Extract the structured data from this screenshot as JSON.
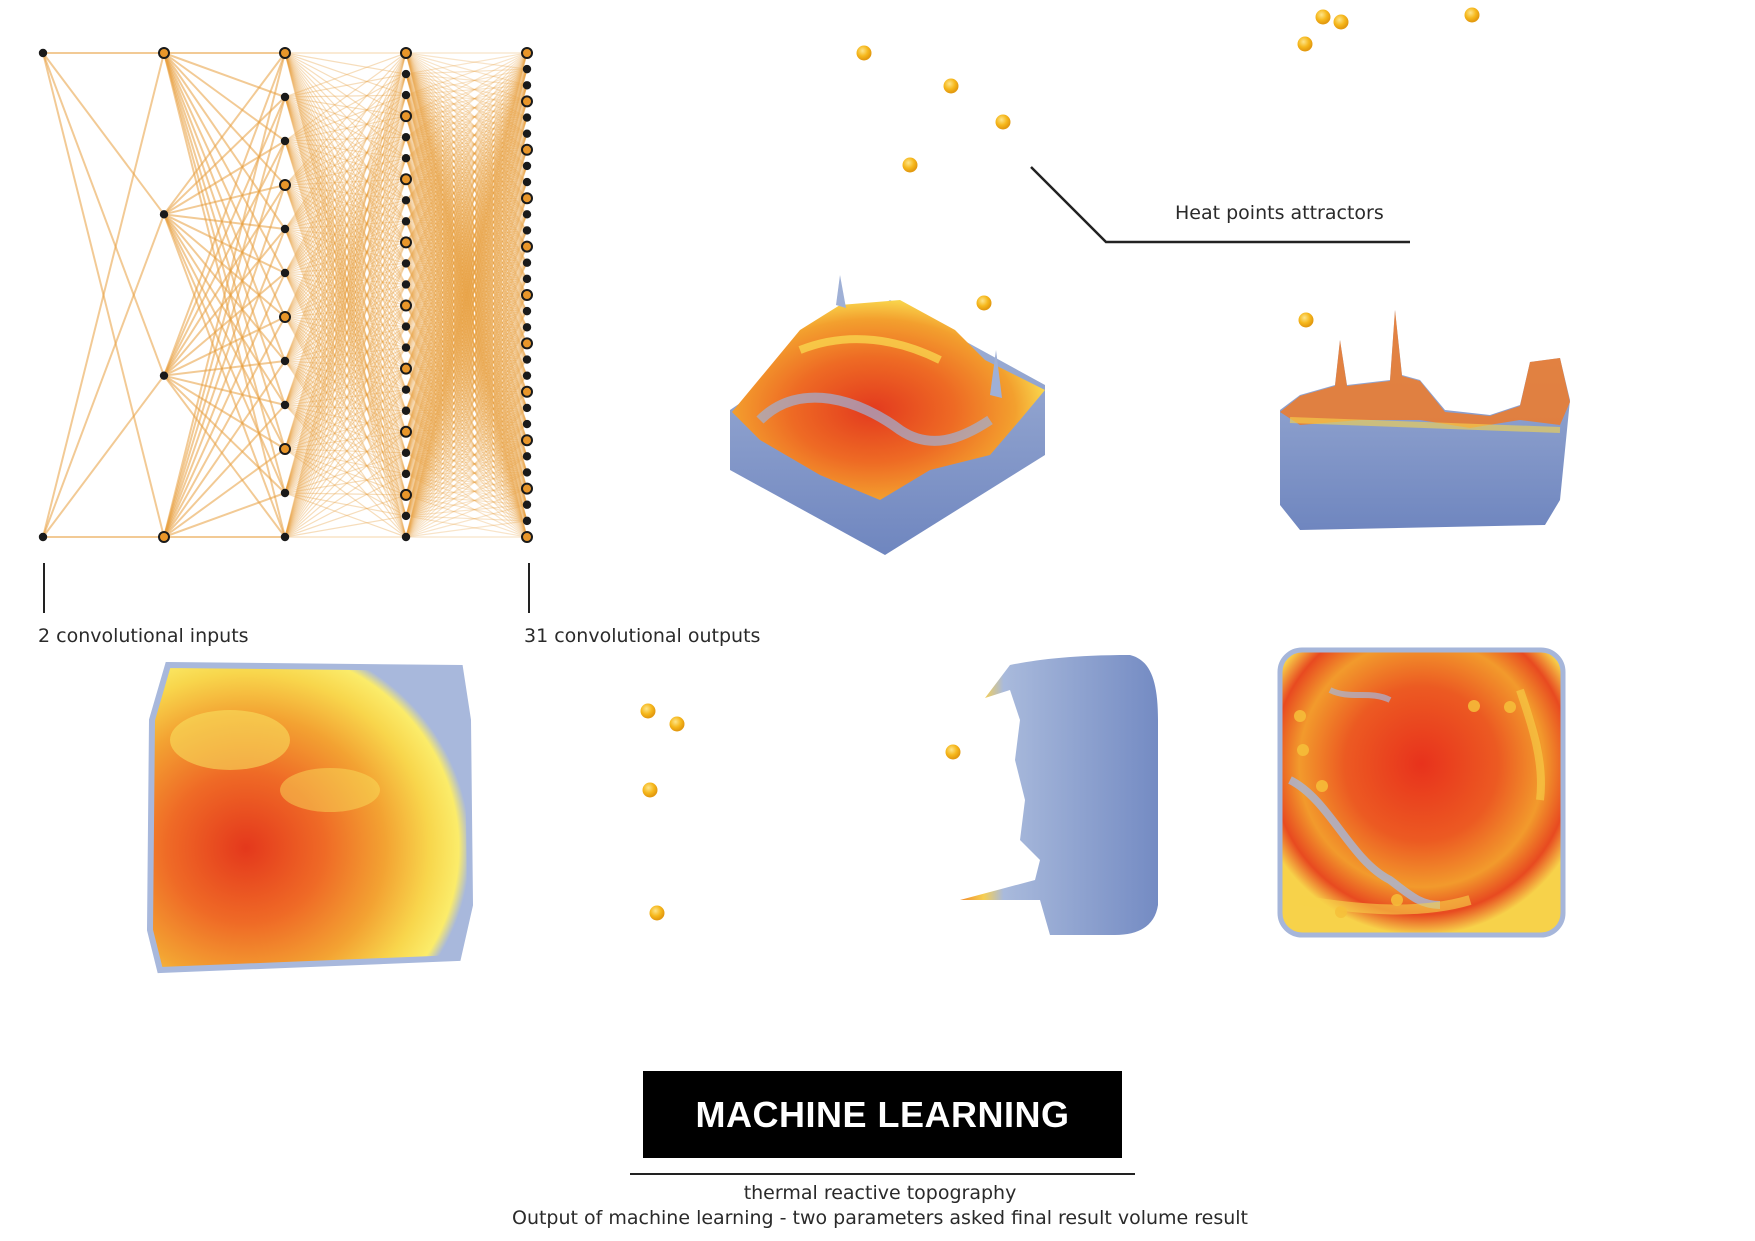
{
  "network": {
    "input_label": "2 convolutional inputs",
    "output_label": "31 convolutional outputs",
    "layer_node_counts": [
      2,
      4,
      12,
      24,
      31
    ],
    "edge_color": "#e8a040",
    "node_stroke": "#1a1a1a",
    "node_fill": "#e8962a"
  },
  "annotations": {
    "heat_points": "Heat points attractors"
  },
  "colors": {
    "hot_red": "#e8341c",
    "warm_orange": "#f08c28",
    "yellow": "#fbe650",
    "cool_blue": "#7d93c6",
    "attractor": "#f4b418"
  },
  "footer": {
    "title": "MACHINE LEARNING",
    "subtitle": "thermal reactive topography",
    "description": "Output of machine learning - two parameters asked final result volume result"
  }
}
